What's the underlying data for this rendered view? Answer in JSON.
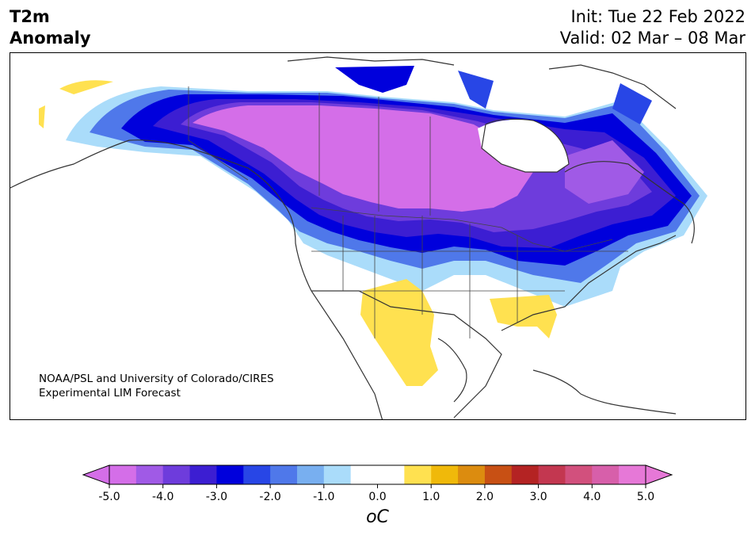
{
  "header": {
    "title_line1": "T2m",
    "title_line2": "Anomaly",
    "init": "Init: Tue 22 Feb 2022",
    "valid": "Valid: 02 Mar – 08 Mar"
  },
  "credit": {
    "line1": "NOAA/PSL and University of Colorado/CIRES",
    "line2": "Experimental LIM Forecast"
  },
  "colorbar": {
    "unit": "°C",
    "unit_display": "oC",
    "ticks": [
      "-5.0",
      "-4.0",
      "-3.0",
      "-2.0",
      "-1.0",
      "0.0",
      "1.0",
      "2.0",
      "3.0",
      "4.0",
      "5.0"
    ],
    "colors": [
      "#d46ee8",
      "#a05ae6",
      "#6e3cdc",
      "#3c1ed2",
      "#0000dc",
      "#2846e6",
      "#4f78ea",
      "#78aff0",
      "#aadcfa",
      "#ffffff",
      "#ffffff",
      "#ffe150",
      "#f0b90a",
      "#dc8c0f",
      "#c85014",
      "#b42323",
      "#c33750",
      "#d2507d",
      "#d75faa",
      "#e678d7"
    ],
    "under_color": "#d46ee8",
    "over_color": "#e678d7"
  }
}
